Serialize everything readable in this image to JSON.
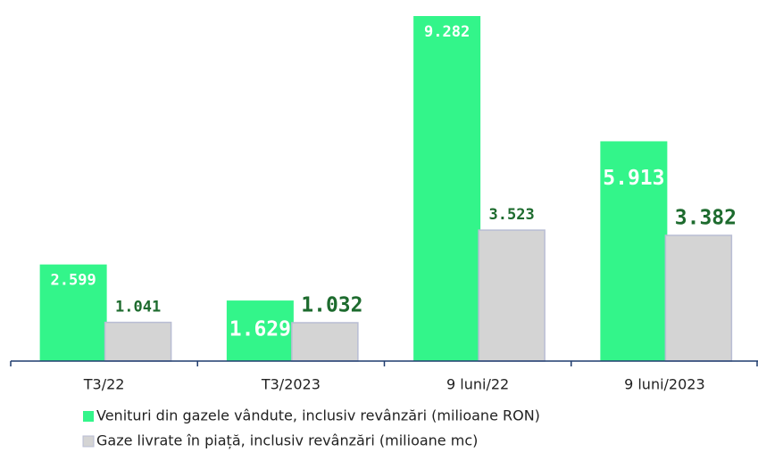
{
  "chart_data": {
    "type": "bar",
    "categories": [
      "T3/22",
      "T3/2023",
      "9 luni/22",
      "9 luni/2023"
    ],
    "series": [
      {
        "name": "Venituri din gazele vândute, inclusiv revânzări (milioane RON)",
        "color": "#33f58a",
        "values": [
          2599,
          1629,
          9282,
          5913
        ],
        "value_labels": [
          "2.599",
          "1.629",
          "9.282",
          "5.913"
        ]
      },
      {
        "name": "Gaze livrate în piață, inclusiv revânzări (milioane mc)",
        "color": "#d4d4d4",
        "values": [
          1041,
          1032,
          3523,
          3382
        ],
        "value_labels": [
          "1.041",
          "1.032",
          "3.523",
          "3.382"
        ]
      }
    ]
  }
}
